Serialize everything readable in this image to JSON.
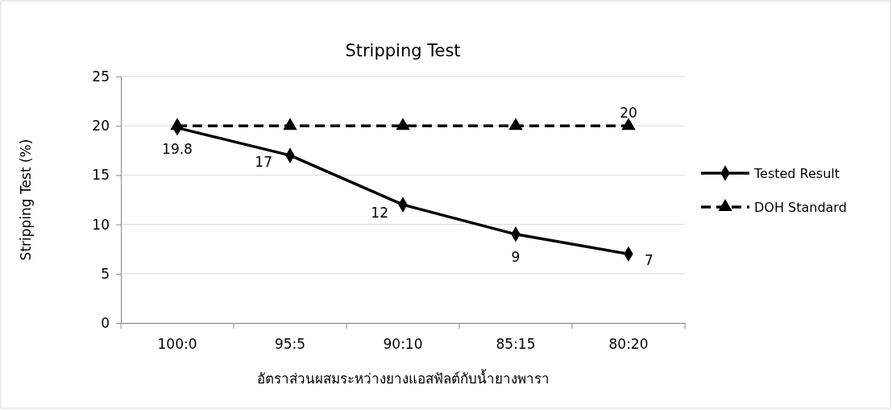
{
  "chart_data": {
    "type": "line",
    "title": "Stripping Test",
    "xlabel": "อัตราส่วนผสมระหว่างยางแอสฟัลต์กับน้ำยางพารา",
    "ylabel": "Stripping Test (%)",
    "categories": [
      "100:0",
      "95:5",
      "90:10",
      "85:15",
      "80:20"
    ],
    "ylim": [
      0,
      25
    ],
    "yticks": [
      0,
      5,
      10,
      15,
      20,
      25
    ],
    "grid": "y",
    "legend": "right",
    "series": [
      {
        "name": "Tested Result",
        "color": "#000000",
        "values": [
          19.8,
          17,
          12,
          9,
          7
        ],
        "marker": "diamond",
        "line_style": "solid",
        "value_labels": [
          "19.8",
          "17",
          "12",
          "9",
          "7"
        ]
      },
      {
        "name": "DOH Standard",
        "color": "#000000",
        "values": [
          20,
          20,
          20,
          20,
          20
        ],
        "marker": "triangle",
        "line_style": "dashed",
        "value_labels": [
          null,
          null,
          null,
          null,
          "20"
        ]
      }
    ]
  }
}
